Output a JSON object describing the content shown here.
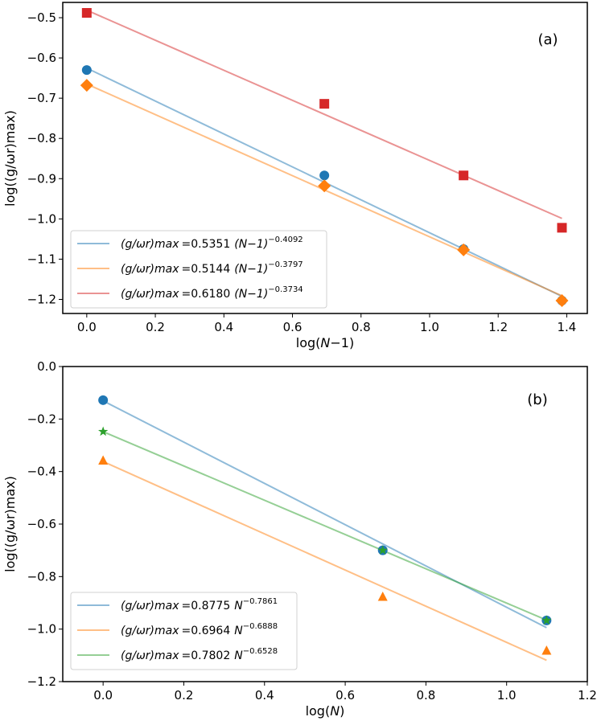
{
  "chart_data": [
    {
      "type": "scatter",
      "panel_label": "(a)",
      "xlabel": {
        "pre": "log(",
        "var": "N",
        "post": "−1)"
      },
      "ylabel": "log((g/ωr)max)",
      "xlim": [
        -0.07,
        1.46
      ],
      "ylim": [
        -1.235,
        -0.462
      ],
      "xticks": [
        0.0,
        0.2,
        0.4,
        0.6,
        0.8,
        1.0,
        1.2,
        1.4
      ],
      "xtick_labels": [
        "0.0",
        "0.2",
        "0.4",
        "0.6",
        "0.8",
        "1.0",
        "1.2",
        "1.4"
      ],
      "yticks": [
        -0.5,
        -0.6,
        -0.7,
        -0.8,
        -0.9,
        -1.0,
        -1.1,
        -1.2
      ],
      "ytick_labels": [
        "−0.5",
        "−0.6",
        "−0.7",
        "−0.8",
        "−0.9",
        "−1.0",
        "−1.1",
        "−1.2"
      ],
      "legend_placement": "lower-left",
      "x": [
        0.0,
        0.693,
        1.099,
        1.386
      ],
      "series": [
        {
          "name": "blue",
          "color": "#1f77b4",
          "marker": "circle",
          "values": [
            -0.63,
            -0.892,
            -1.075,
            -1.203
          ],
          "fit": {
            "intercept": -0.6253,
            "slope": -0.4092
          },
          "legend": {
            "lhs": "(g/ωr)max",
            "eq": "=",
            "coef": "0.5351",
            "base": "(N−1)",
            "exp": "−0.4092"
          }
        },
        {
          "name": "orange",
          "color": "#ff7f0e",
          "marker": "diamond",
          "values": [
            -0.668,
            -0.918,
            -1.077,
            -1.203
          ],
          "fit": {
            "intercept": -0.6648,
            "slope": -0.3797
          },
          "legend": {
            "lhs": "(g/ωr)max",
            "eq": "=",
            "coef": "0.5144",
            "base": "(N−1)",
            "exp": "−0.3797"
          }
        },
        {
          "name": "red",
          "color": "#d62728",
          "marker": "square",
          "values": [
            -0.488,
            -0.714,
            -0.892,
            -1.022
          ],
          "fit": {
            "intercept": -0.4813,
            "slope": -0.3734
          },
          "legend": {
            "lhs": "(g/ωr)max",
            "eq": "=",
            "coef": "0.6180",
            "base": "(N−1)",
            "exp": "−0.3734"
          }
        }
      ]
    },
    {
      "type": "scatter",
      "panel_label": "(b)",
      "xlabel": {
        "pre": "log(",
        "var": "N",
        "post": ")"
      },
      "ylabel": "log((g/ωr)max)",
      "xlim": [
        -0.1,
        1.2
      ],
      "ylim": [
        -1.2,
        0.0
      ],
      "xticks": [
        0.0,
        0.2,
        0.4,
        0.6,
        0.8,
        1.0,
        1.2
      ],
      "xtick_labels": [
        "0.0",
        "0.2",
        "0.4",
        "0.6",
        "0.8",
        "1.0",
        "1.2"
      ],
      "yticks": [
        0.0,
        -0.2,
        -0.4,
        -0.6,
        -0.8,
        -1.0,
        -1.2
      ],
      "ytick_labels": [
        "0.0",
        "−0.2",
        "−0.4",
        "−0.6",
        "−0.8",
        "−1.0",
        "−1.2"
      ],
      "legend_placement": "lower-left",
      "x": [
        0.0,
        0.693,
        1.099
      ],
      "series": [
        {
          "name": "blue",
          "color": "#1f77b4",
          "marker": "circle",
          "values": [
            -0.128,
            -0.7,
            -0.967
          ],
          "fit": {
            "intercept": -0.1307,
            "slope": -0.7861
          },
          "legend": {
            "lhs": "(g/ωr)max",
            "eq": "=",
            "coef": "0.8775",
            "base": "N",
            "exp": "−0.7861"
          }
        },
        {
          "name": "orange",
          "color": "#ff7f0e",
          "marker": "triangle",
          "values": [
            -0.358,
            -0.877,
            -1.082
          ],
          "fit": {
            "intercept": -0.3618,
            "slope": -0.6888
          },
          "legend": {
            "lhs": "(g/ωr)max",
            "eq": "=",
            "coef": "0.6964",
            "base": "N",
            "exp": "−0.6888"
          }
        },
        {
          "name": "green",
          "color": "#2ca02c",
          "marker": "star",
          "values": [
            -0.248,
            -0.7,
            -0.967
          ],
          "fit": {
            "intercept": -0.2482,
            "slope": -0.6528
          },
          "legend": {
            "lhs": "(g/ωr)max",
            "eq": "=",
            "coef": "0.7802",
            "base": "N",
            "exp": "−0.6528"
          }
        }
      ]
    }
  ]
}
